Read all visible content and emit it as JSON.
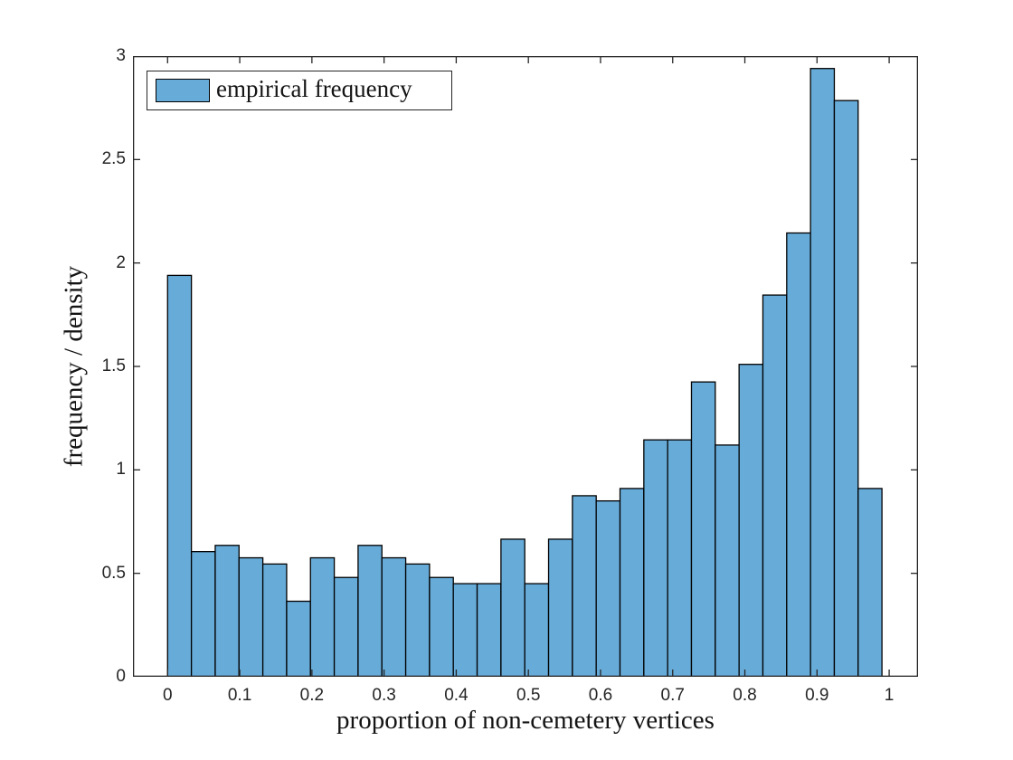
{
  "chart_data": {
    "type": "bar",
    "subtype": "histogram",
    "title": "",
    "xlabel": "proportion of non-cemetery vertices",
    "ylabel": "frequency / density",
    "legend": [
      {
        "label": "empirical frequency",
        "color": "#67ABD8"
      }
    ],
    "legend_position": "top-left",
    "grid": false,
    "bin_start": 0,
    "bin_width": 0.033,
    "values": [
      1.94,
      0.605,
      0.635,
      0.575,
      0.545,
      0.365,
      0.575,
      0.48,
      0.635,
      0.575,
      0.545,
      0.48,
      0.45,
      0.45,
      0.665,
      0.45,
      0.665,
      0.875,
      0.85,
      0.91,
      1.145,
      1.145,
      1.425,
      1.12,
      1.51,
      1.845,
      2.145,
      2.94,
      2.785,
      0.91
    ],
    "xlim": [
      -0.048,
      1.04
    ],
    "ylim": [
      0,
      3
    ],
    "xticks": [
      0,
      0.1,
      0.2,
      0.3,
      0.4,
      0.5,
      0.6,
      0.7,
      0.8,
      0.9,
      1
    ],
    "xtick_labels": [
      "0",
      "0.1",
      "0.2",
      "0.3",
      "0.4",
      "0.5",
      "0.6",
      "0.7",
      "0.8",
      "0.9",
      "1"
    ],
    "yticks": [
      0,
      0.5,
      1,
      1.5,
      2,
      2.5,
      3
    ],
    "ytick_labels": [
      "0",
      "0.5",
      "1",
      "1.5",
      "2",
      "2.5",
      "3"
    ],
    "colors": {
      "bar_fill": "#67ABD8",
      "bar_edge": "#000000",
      "axis": "#262626",
      "text": "#141414",
      "background": "#ffffff"
    }
  }
}
